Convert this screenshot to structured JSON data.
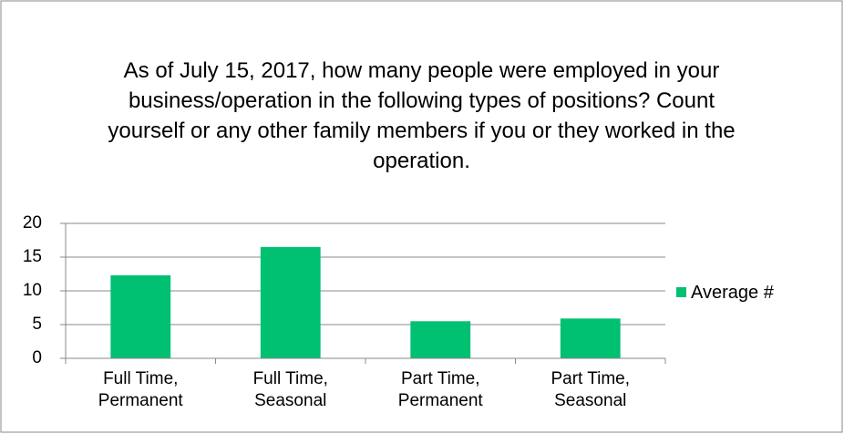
{
  "chart_data": {
    "type": "bar",
    "title": "As of July 15, 2017, how many people were employed in your business/operation in the following types of positions? Count yourself or any other family members if you or they worked in the operation.",
    "categories": [
      "Full Time, Permanent",
      "Full Time, Seasonal",
      "Part Time, Permanent",
      "Part Time, Seasonal"
    ],
    "series": [
      {
        "name": "Average #",
        "color": "#00c072",
        "values": [
          12.3,
          16.5,
          5.5,
          5.9
        ]
      }
    ],
    "ylim": [
      0,
      20
    ],
    "yticks": [
      0,
      5,
      10,
      15,
      20
    ],
    "grid": true,
    "legend": "right"
  }
}
